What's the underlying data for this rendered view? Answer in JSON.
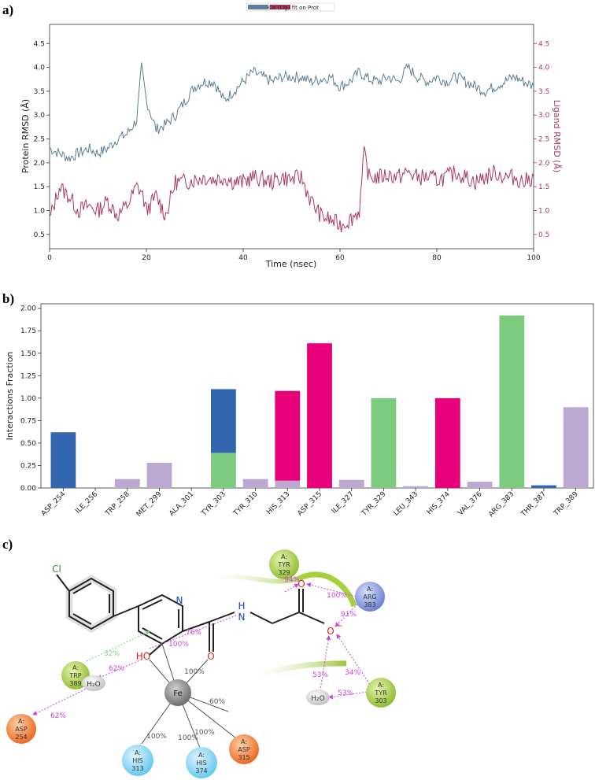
{
  "panels": {
    "a": "a)",
    "b": "b)",
    "c": "c)"
  },
  "colors": {
    "protein": "#5a7f97",
    "ligand": "#a8385f",
    "hbond": "#3465af",
    "hydrophobic": "#bba9d1",
    "ionic": "#e8007a",
    "water": "#7ccb7e",
    "metal": "#e8007a"
  },
  "chart_data": [
    {
      "type": "line",
      "legend": "Cα  (Lig) fit on Prot",
      "xlabel": "Time (nsec)",
      "ylabel_left": "Protein RMSD (Å)",
      "ylabel_right": "Ligand RMSD (Å)",
      "xlim": [
        0,
        100
      ],
      "ylim": [
        0.2,
        4.9
      ],
      "xticks": [
        "0",
        "20",
        "40",
        "60",
        "80",
        "100"
      ],
      "yticks_left": [
        "0.5",
        "1.0",
        "1.5",
        "2.0",
        "2.5",
        "3.0",
        "3.5",
        "4.0",
        "4.5"
      ],
      "yticks_right": [
        "0.5",
        "1.0",
        "1.5",
        "2.0",
        "2.5",
        "3.0",
        "3.5",
        "4.0",
        "4.5"
      ],
      "series": [
        {
          "name": "Protein",
          "x": [
            0,
            2,
            4,
            6,
            8,
            10,
            12,
            14,
            16,
            18,
            19,
            20,
            22,
            24,
            26,
            28,
            30,
            32,
            34,
            36,
            38,
            40,
            42,
            44,
            46,
            48,
            50,
            52,
            54,
            56,
            58,
            60,
            62,
            64,
            66,
            68,
            70,
            72,
            74,
            76,
            78,
            80,
            82,
            84,
            86,
            88,
            90,
            92,
            94,
            96,
            98,
            100
          ],
          "values": [
            2.3,
            2.2,
            2.1,
            2.2,
            2.3,
            2.2,
            2.3,
            2.5,
            2.6,
            2.9,
            4.0,
            3.3,
            2.7,
            2.8,
            3.0,
            3.3,
            3.6,
            3.7,
            3.7,
            3.3,
            3.5,
            3.7,
            3.9,
            3.8,
            3.7,
            3.8,
            3.8,
            3.8,
            3.7,
            3.75,
            3.8,
            3.6,
            3.7,
            3.9,
            3.75,
            3.7,
            3.8,
            3.7,
            4.0,
            3.8,
            3.7,
            3.8,
            3.7,
            3.8,
            3.7,
            3.6,
            3.5,
            3.6,
            3.7,
            3.8,
            3.7,
            3.6
          ]
        },
        {
          "name": "Ligand",
          "x": [
            0,
            2,
            4,
            6,
            8,
            10,
            12,
            14,
            16,
            18,
            19,
            20,
            22,
            24,
            26,
            28,
            30,
            32,
            34,
            36,
            38,
            40,
            42,
            44,
            46,
            48,
            50,
            52,
            54,
            56,
            58,
            60,
            62,
            64,
            65,
            66,
            68,
            70,
            72,
            74,
            76,
            78,
            80,
            82,
            84,
            86,
            88,
            90,
            92,
            94,
            96,
            98,
            100
          ],
          "values": [
            0.8,
            1.5,
            1.3,
            1.0,
            1.1,
            1.0,
            1.2,
            0.9,
            1.1,
            1.5,
            1.4,
            1.0,
            1.3,
            0.9,
            1.6,
            1.6,
            1.65,
            1.7,
            1.65,
            1.7,
            1.6,
            1.6,
            1.7,
            1.65,
            1.6,
            1.7,
            1.65,
            1.7,
            1.2,
            0.9,
            0.8,
            0.7,
            0.8,
            1.0,
            2.2,
            1.7,
            1.7,
            1.75,
            1.7,
            1.8,
            1.7,
            1.7,
            1.65,
            1.7,
            1.8,
            1.7,
            1.6,
            1.7,
            1.8,
            1.7,
            1.7,
            1.6,
            1.7
          ]
        }
      ]
    },
    {
      "type": "bar",
      "ylabel": "Interactions Fraction",
      "ylim": [
        0,
        2.05
      ],
      "yticks": [
        "0.00",
        "0.25",
        "0.50",
        "0.75",
        "1.00",
        "1.25",
        "1.50",
        "1.75",
        "2.00"
      ],
      "categories": [
        "ASP_254",
        "ILE_256",
        "TRP_258",
        "MET_299",
        "ALA_301",
        "TYR_303",
        "TYR_310",
        "HIS_313",
        "ASP_315",
        "ILE_327",
        "TYR_329",
        "LEU_343",
        "HIS_374",
        "VAL_376",
        "ARG_383",
        "THR_387",
        "TRP_389"
      ],
      "series": [
        {
          "name": "H-bonds",
          "values": [
            0.62,
            0,
            0,
            0,
            0,
            0.71,
            0,
            0,
            0,
            0,
            0,
            0,
            0,
            0,
            0,
            0.03,
            0
          ]
        },
        {
          "name": "Hydrophobic",
          "values": [
            0,
            0,
            0.1,
            0.28,
            0,
            0,
            0.1,
            0.08,
            0,
            0.09,
            0,
            0.02,
            0,
            0.07,
            0,
            0,
            0.9
          ]
        },
        {
          "name": "Ionic",
          "values": [
            0,
            0,
            0,
            0,
            0,
            0,
            0,
            1.0,
            1.61,
            0,
            0,
            0,
            1.0,
            0,
            0,
            0,
            0
          ]
        },
        {
          "name": "Water bridges",
          "values": [
            0,
            0,
            0,
            0,
            0,
            0.39,
            0,
            0,
            0,
            0,
            1.0,
            0,
            0,
            0,
            1.92,
            0,
            0
          ]
        }
      ]
    }
  ],
  "diagram": {
    "atoms": {
      "cl": "Cl",
      "n": "N",
      "nh_h": "H",
      "nh_n": "N",
      "o1": "O",
      "o2": "O",
      "ominus": "O",
      "ho": "HO",
      "fe": "Fe",
      "h2o_1": "H₂O",
      "h2o_2": "H₂O"
    },
    "residues": {
      "tyr329": {
        "chain": "A:",
        "name": "TYR",
        "num": "329"
      },
      "arg383": {
        "chain": "A:",
        "name": "ARG",
        "num": "383"
      },
      "tyr303": {
        "chain": "A:",
        "name": "TYR",
        "num": "303"
      },
      "trp389": {
        "chain": "A:",
        "name": "TRP",
        "num": "389"
      },
      "asp254": {
        "chain": "A:",
        "name": "ASP",
        "num": "254"
      },
      "his313": {
        "chain": "A:",
        "name": "HIS",
        "num": "313"
      },
      "his374": {
        "chain": "A:",
        "name": "HIS",
        "num": "374"
      },
      "asp315": {
        "chain": "A:",
        "name": "ASP",
        "num": "315"
      }
    },
    "percentages": {
      "p94": "94%",
      "p100_arg": "100%",
      "p91": "91%",
      "p76": "76%",
      "p32": "32%",
      "p100_ho": "100%",
      "p62_a": "62%",
      "p62_b": "62%",
      "p100_fe": "100%",
      "p53_a": "53%",
      "p53_b": "53%",
      "p34": "34%",
      "p60": "60%",
      "p100_h313": "100%",
      "p100_h374": "100%",
      "p100_asp": "100%"
    }
  }
}
